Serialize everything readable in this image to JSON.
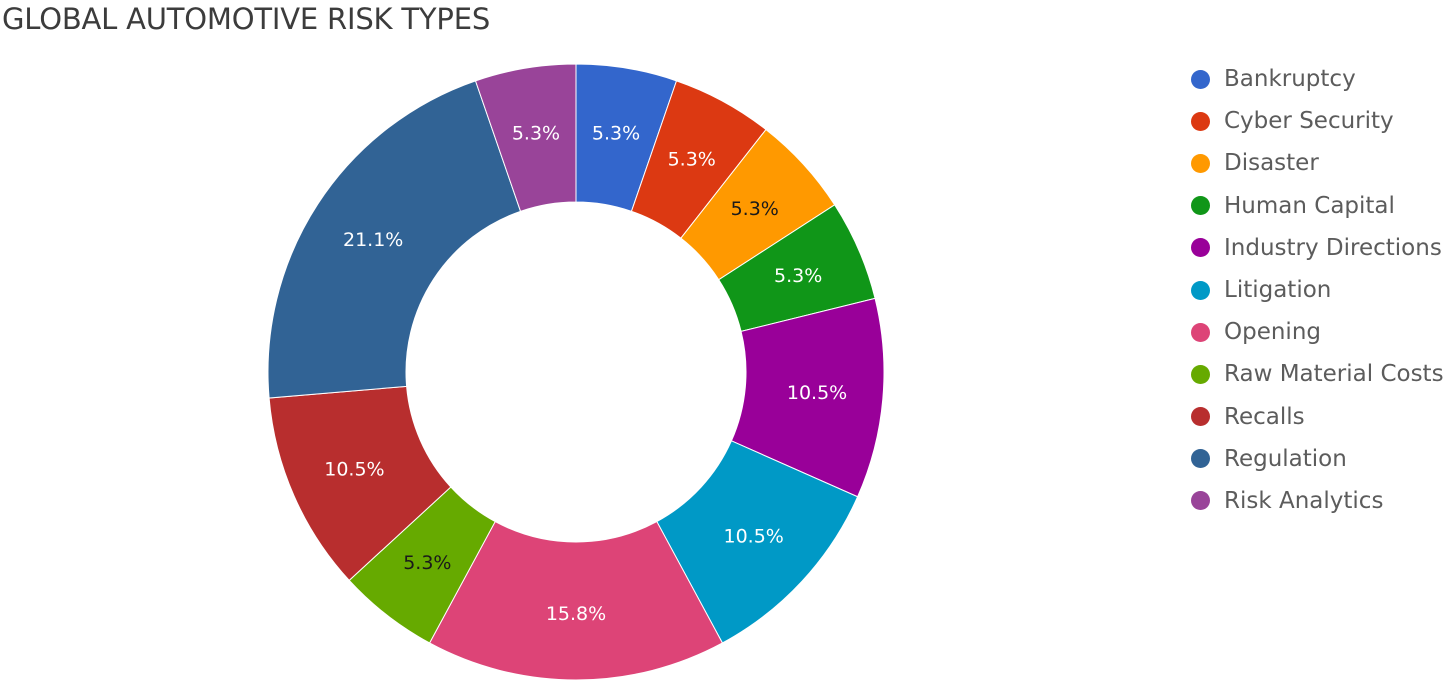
{
  "chart_data": {
    "type": "pie",
    "title": "GLOBAL AUTOMOTIVE RISK TYPES",
    "donut": true,
    "legend_position": "right",
    "series": [
      {
        "name": "Bankruptcy",
        "value": 5.3,
        "label": "5.3%",
        "color": "#3366cc",
        "label_color": "#ffffff"
      },
      {
        "name": "Cyber Security",
        "value": 5.3,
        "label": "5.3%",
        "color": "#dc3912",
        "label_color": "#ffffff"
      },
      {
        "name": "Disaster",
        "value": 5.3,
        "label": "5.3%",
        "color": "#ff9900",
        "label_color": "#1a1a1a"
      },
      {
        "name": "Human Capital",
        "value": 5.3,
        "label": "5.3%",
        "color": "#109618",
        "label_color": "#ffffff"
      },
      {
        "name": "Industry Directions",
        "value": 10.5,
        "label": "10.5%",
        "color": "#990099",
        "label_color": "#ffffff"
      },
      {
        "name": "Litigation",
        "value": 10.5,
        "label": "10.5%",
        "color": "#0099c6",
        "label_color": "#ffffff"
      },
      {
        "name": "Opening",
        "value": 15.8,
        "label": "15.8%",
        "color": "#dd4477",
        "label_color": "#ffffff"
      },
      {
        "name": "Raw Material Costs",
        "value": 5.3,
        "label": "5.3%",
        "color": "#66aa00",
        "label_color": "#1a1a1a"
      },
      {
        "name": "Recalls",
        "value": 10.5,
        "label": "10.5%",
        "color": "#b82e2e",
        "label_color": "#ffffff"
      },
      {
        "name": "Regulation",
        "value": 21.1,
        "label": "21.1%",
        "color": "#316395",
        "label_color": "#ffffff"
      },
      {
        "name": "Risk Analytics",
        "value": 5.3,
        "label": "5.3%",
        "color": "#994499",
        "label_color": "#ffffff"
      }
    ]
  }
}
